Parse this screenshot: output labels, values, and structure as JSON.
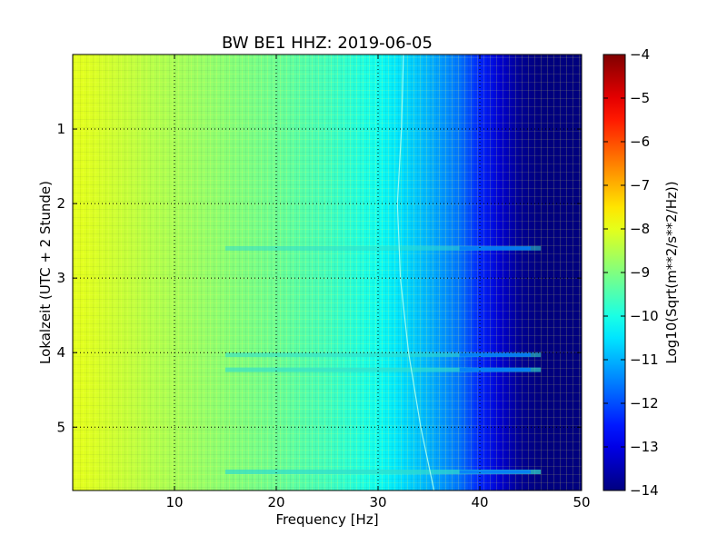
{
  "chart_data": {
    "type": "heatmap",
    "title": "BW BE1 HHZ: 2019-06-05",
    "xlabel": "Frequency [Hz]",
    "ylabel": "Lokalzeit (UTC + 2 Stunde)",
    "xlim": [
      0,
      50
    ],
    "ylim": [
      5.85,
      0
    ],
    "x_ticks": [
      "10",
      "20",
      "30",
      "40",
      "50"
    ],
    "y_ticks": [
      "1",
      "2",
      "3",
      "4",
      "5"
    ],
    "grid": true,
    "colormap": "jet",
    "colorbar": {
      "label": "Log10(Sqrt(m**2/s**2/Hz))",
      "range": [
        -14,
        -4
      ],
      "ticks": [
        "−4",
        "−5",
        "−6",
        "−7",
        "−8",
        "−9",
        "−10",
        "−11",
        "−12",
        "−13",
        "−14"
      ]
    },
    "spectral_profile": {
      "frequency_hz": [
        0,
        2,
        5,
        10,
        15,
        20,
        25,
        30,
        32,
        35,
        38,
        40,
        42,
        44,
        46,
        50
      ],
      "log_amplitude": [
        -8.0,
        -8.1,
        -8.3,
        -8.6,
        -8.9,
        -9.2,
        -9.6,
        -10.1,
        -10.5,
        -11.0,
        -11.6,
        -12.4,
        -13.2,
        -13.8,
        -14.0,
        -14.0
      ]
    },
    "highlighted_bands": [
      {
        "time_h": 2.6,
        "level_shift": 0.6
      },
      {
        "time_h": 4.03,
        "level_shift": 0.8
      },
      {
        "time_h": 4.23,
        "level_shift": 1.0
      },
      {
        "time_h": 5.6,
        "level_shift": 1.2
      }
    ],
    "tonal_line": {
      "time_h": [
        0,
        1,
        2,
        3,
        4,
        5,
        5.85
      ],
      "frequency_hz": [
        32.5,
        32.3,
        31.9,
        32.2,
        33.0,
        34.2,
        35.5
      ]
    }
  }
}
